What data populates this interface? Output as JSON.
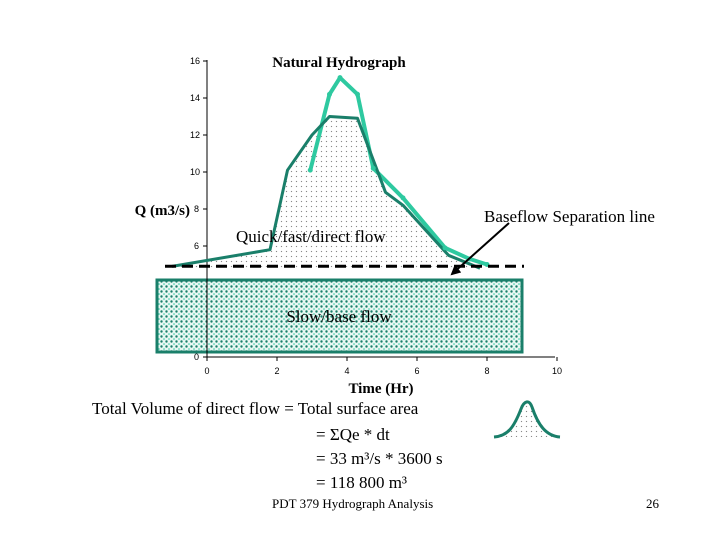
{
  "chart_data": {
    "type": "line",
    "title": "Natural Hydrograph",
    "xlabel": "Time (Hr)",
    "ylabel": "Q (m3/s)",
    "xlim": [
      0,
      10
    ],
    "ylim": [
      0,
      16
    ],
    "x_ticks": [
      "0",
      "2",
      "4",
      "6",
      "8",
      "10"
    ],
    "y_ticks": [
      "0",
      "6",
      "8",
      "10",
      "12",
      "14",
      "16"
    ],
    "baseflow_level": 4.8,
    "series": [
      {
        "name": "",
        "color": "#2ec9a0",
        "x": [
          2.95,
          3.5,
          3.8,
          4.3,
          4.75,
          5.6,
          6.8,
          7.5,
          8.0
        ],
        "y": [
          10.1,
          14.2,
          15.1,
          14.2,
          10.2,
          8.6,
          5.9,
          5.3,
          5.0
        ]
      },
      {
        "name": "",
        "color": "#1a7f6a",
        "x": [
          -1.0,
          1.8,
          2.3,
          3.0,
          3.5,
          4.3,
          5.1,
          5.6,
          6.9,
          7.8
        ],
        "y": [
          4.9,
          5.8,
          10.1,
          12.0,
          13.0,
          12.9,
          8.9,
          8.2,
          5.5,
          4.8
        ]
      }
    ],
    "annotations": {
      "direct": "Quick/fast/direct flow",
      "base": "Slow/base flow",
      "separation": "Baseflow Separation line"
    }
  },
  "text": {
    "volume_line": "Total Volume of direct flow = Total surface area",
    "eq1": "= ΣQe * dt",
    "eq2": "= 33 m³/s * 3600 s",
    "eq3": "= 118 800 m³"
  },
  "footer": {
    "course": "PDT 379 Hydrograph Analysis",
    "page": "26"
  },
  "colors": {
    "light": "#2ec9a0",
    "dark": "#1a7f6a",
    "fill": "#f3fbf8"
  }
}
